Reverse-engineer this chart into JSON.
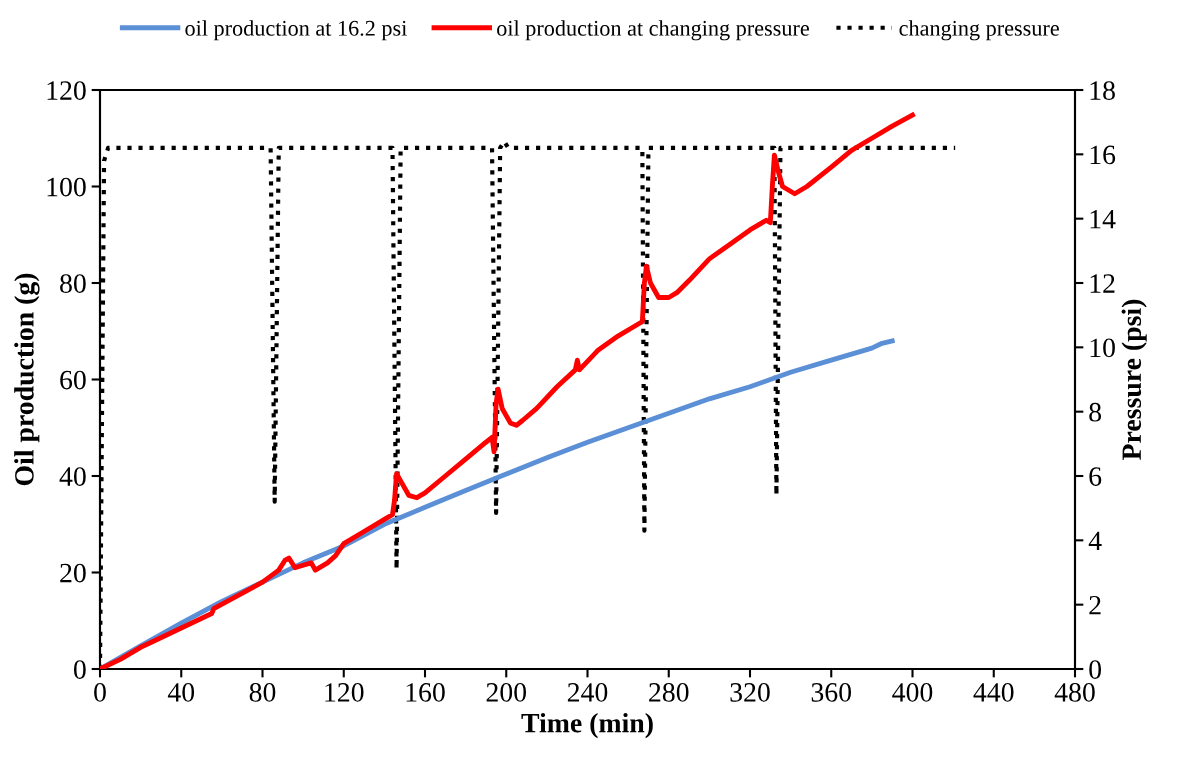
{
  "chart_data": {
    "type": "line",
    "xlabel": "Time (min)",
    "ylabel": "Oil production (g)",
    "y2label": "Pressure (psi)",
    "xlim": [
      0,
      480
    ],
    "xticks": [
      0,
      40,
      80,
      120,
      160,
      200,
      240,
      280,
      320,
      360,
      400,
      440,
      480
    ],
    "ylim": [
      0,
      120
    ],
    "yticks": [
      0,
      20,
      40,
      60,
      80,
      100,
      120
    ],
    "y2lim": [
      0,
      18
    ],
    "y2ticks": [
      0,
      2,
      4,
      6,
      8,
      10,
      12,
      14,
      16,
      18
    ],
    "grid": false,
    "legend": "top",
    "marker": "none",
    "series": [
      {
        "name": "oil production at 16.2 psi",
        "color": "#5b8fd6",
        "line_style": "solid",
        "x": [
          0,
          20,
          40,
          60,
          80,
          100,
          120,
          140,
          160,
          180,
          200,
          220,
          240,
          260,
          280,
          300,
          320,
          340,
          360,
          380,
          385,
          390
        ],
        "values": [
          0,
          4.8,
          9.5,
          14,
          18,
          22,
          25.5,
          30,
          33.5,
          37,
          40.4,
          43.8,
          47,
          50,
          53,
          56,
          58.5,
          61.5,
          64,
          66.5,
          67.5,
          68
        ]
      },
      {
        "name": "oil production at changing pressure",
        "color": "#ff0000",
        "line_style": "solid",
        "x": [
          0,
          10,
          20,
          25,
          40,
          55,
          56,
          80,
          88,
          91,
          93,
          96,
          100,
          104,
          106,
          112,
          116,
          120,
          130,
          140,
          144,
          145,
          146,
          148,
          152,
          156,
          160,
          170,
          180,
          190,
          193,
          194,
          195,
          196,
          198,
          202,
          205,
          208,
          215,
          225,
          234,
          235,
          236,
          245,
          255,
          265,
          267,
          268,
          269,
          271,
          275,
          280,
          284,
          290,
          300,
          310,
          320,
          328,
          330,
          331,
          332,
          334,
          336,
          342,
          348,
          360,
          370,
          380,
          390,
          400
        ],
        "values": [
          0,
          2,
          4.5,
          5.5,
          8.5,
          11.5,
          12.5,
          18,
          20.5,
          22.5,
          23,
          21,
          21.5,
          22,
          20.5,
          22,
          23.5,
          26,
          28.5,
          31,
          32,
          35,
          40.5,
          39,
          36,
          35.5,
          36.5,
          40,
          43.5,
          47,
          48,
          45,
          55,
          58,
          54,
          51,
          50.5,
          51.5,
          54,
          58.5,
          62,
          64,
          62,
          66,
          69,
          71.5,
          72,
          80,
          83.5,
          80,
          77,
          77,
          78,
          80.5,
          85,
          88,
          91,
          93,
          92.5,
          100,
          106.5,
          103,
          100,
          98.5,
          100,
          104,
          107.5,
          110,
          112.5,
          114.8
        ]
      },
      {
        "name": "changing pressure",
        "color": "#000000",
        "line_style": "dotted",
        "axis": "y2",
        "x": [
          0,
          1,
          2,
          4,
          84,
          86,
          88,
          144,
          146,
          148,
          193,
          195,
          197,
          199,
          201,
          267,
          268,
          270,
          332,
          333,
          335,
          421
        ],
        "values": [
          0,
          8,
          15.8,
          16.2,
          16.2,
          5.2,
          16.2,
          16.2,
          3.1,
          16.2,
          16.2,
          4.85,
          16.2,
          16.4,
          16.2,
          16.2,
          4.3,
          16.2,
          16.2,
          5.4,
          16.2,
          16.2
        ]
      }
    ]
  }
}
